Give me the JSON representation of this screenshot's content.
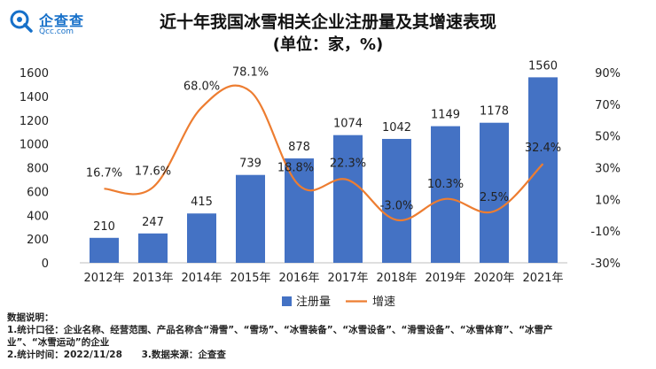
{
  "brand": {
    "name_cn": "企查查",
    "name_en": "Qcc.com"
  },
  "chart_data": {
    "type": "bar",
    "title": "近十年我国冰雪相关企业注册量及其增速表现",
    "subtitle": "(单位：家，%)",
    "categories": [
      "2012年",
      "2013年",
      "2014年",
      "2015年",
      "2016年",
      "2017年",
      "2018年",
      "2019年",
      "2020年",
      "2021年"
    ],
    "series": [
      {
        "name": "注册量",
        "type": "bar",
        "axis": "left",
        "color": "#4472c4",
        "values": [
          210,
          247,
          415,
          739,
          878,
          1074,
          1042,
          1149,
          1178,
          1560
        ],
        "labels": [
          "210",
          "247",
          "415",
          "739",
          "878",
          "1074",
          "1042",
          "1149",
          "1178",
          "1560"
        ]
      },
      {
        "name": "增速",
        "type": "line",
        "axis": "right",
        "color": "#ed7d31",
        "values": [
          16.7,
          17.6,
          68.0,
          78.1,
          18.8,
          22.3,
          -3.0,
          10.3,
          2.5,
          32.4
        ],
        "labels": [
          "16.7%",
          "17.6%",
          "68.0%",
          "78.1%",
          "18.8%",
          "22.3%",
          "-3.0%",
          "10.3%",
          "2.5%",
          "32.4%"
        ]
      }
    ],
    "y_left": {
      "min": 0,
      "max": 1600,
      "ticks": [
        0,
        200,
        400,
        600,
        800,
        1000,
        1200,
        1400,
        1600
      ],
      "tick_labels": [
        "0",
        "200",
        "400",
        "600",
        "800",
        "1000",
        "1200",
        "1400",
        "1600"
      ]
    },
    "y_right": {
      "min": -30,
      "max": 90,
      "ticks": [
        -30,
        -10,
        10,
        30,
        50,
        70,
        90
      ],
      "tick_labels": [
        "-30%",
        "-10%",
        "10%",
        "30%",
        "50%",
        "70%",
        "90%"
      ]
    },
    "legend": {
      "position": "bottom",
      "items": [
        "注册量",
        "增速"
      ]
    },
    "grid": false
  },
  "notes": {
    "heading": "数据说明：",
    "line1": "1.统计口径：企业名称、经营范围、产品名称含“滑雪”、“雪场”、“冰雪装备”、“冰雪设备”、“滑雪设备”、“冰雪体育”、“冰雪产",
    "line2": "业”、“冰雪运动”的企业",
    "line3a": "2.统计时间：2022/11/28",
    "line3b": "3.数据来源：企查查"
  }
}
